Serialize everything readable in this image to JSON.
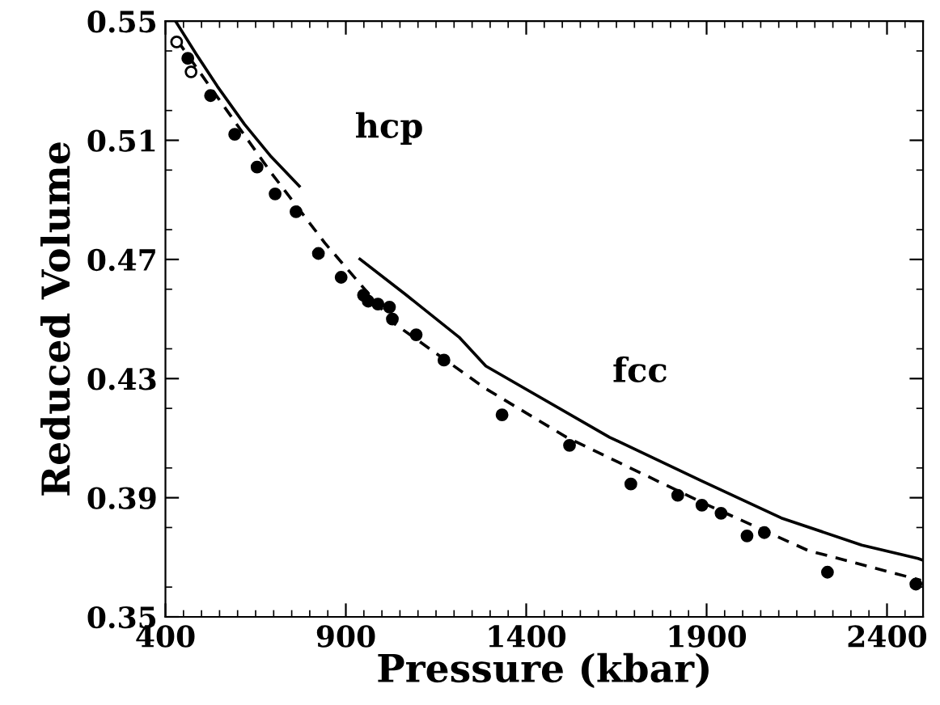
{
  "chart_data": {
    "type": "scatter",
    "xlabel": "Pressure (kbar)",
    "ylabel": "Reduced Volume",
    "xlim": [
      400,
      2500
    ],
    "ylim": [
      0.35,
      0.55
    ],
    "xticks": [
      400,
      900,
      1400,
      1900,
      2400
    ],
    "yticks": [
      0.35,
      0.39,
      0.43,
      0.47,
      0.51,
      0.55
    ],
    "grid": false,
    "legend": false,
    "series": [
      {
        "type": "line",
        "line_style": "solid",
        "color": "#000000",
        "x": [
          428,
          485,
          544,
          619,
          693,
          771
        ],
        "values": [
          0.55,
          0.539,
          0.5281,
          0.5154,
          0.5045,
          0.4946
        ]
      },
      {
        "type": "line",
        "line_style": "solid",
        "color": "#000000",
        "x": [
          939,
          1065,
          1214,
          1288,
          1631,
          1884,
          2107,
          2330,
          2486,
          2500
        ],
        "values": [
          0.4701,
          0.4583,
          0.4439,
          0.4342,
          0.4103,
          0.3958,
          0.3832,
          0.3741,
          0.3696,
          0.369
        ]
      },
      {
        "type": "line",
        "line_style": "dashed",
        "color": "#000000",
        "x": [
          433,
          544,
          693,
          842,
          1035,
          1288,
          1512,
          1884,
          2181,
          2494
        ],
        "values": [
          0.5435,
          0.5245,
          0.4991,
          0.4755,
          0.4484,
          0.4266,
          0.4103,
          0.3886,
          0.3723,
          0.3623
        ]
      },
      {
        "marker": "circle",
        "color": "#ffffff",
        "x": [
          431,
          471
        ],
        "values": [
          0.543,
          0.533
        ]
      },
      {
        "marker": "circle",
        "color": "#000000",
        "x": [
          462,
          525,
          592,
          654,
          704,
          762,
          824,
          887,
          949,
          962,
          989,
          1021,
          1029,
          1095,
          1172,
          1333,
          1520,
          1690,
          1820,
          1887,
          1940,
          2012,
          2060,
          2235,
          2480
        ],
        "values": [
          0.5375,
          0.525,
          0.512,
          0.501,
          0.492,
          0.486,
          0.472,
          0.464,
          0.458,
          0.456,
          0.455,
          0.454,
          0.45,
          0.4447,
          0.4362,
          0.4178,
          0.4076,
          0.3946,
          0.3908,
          0.3875,
          0.3848,
          0.3772,
          0.3783,
          0.365,
          0.361
        ]
      }
    ],
    "annotations": [
      "hcp",
      "fcc"
    ]
  }
}
